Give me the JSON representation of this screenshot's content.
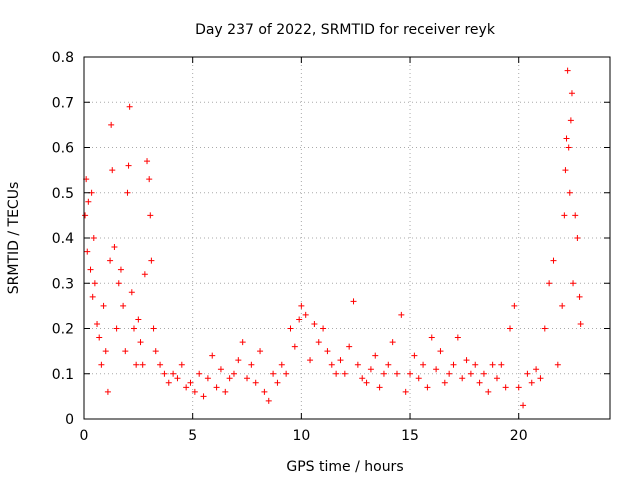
{
  "chart_data": {
    "type": "scatter",
    "title": "Day 237 of 2022, SRMTID for receiver reyk",
    "xlabel": "GPS time / hours",
    "ylabel": "SRMTID / TECUs",
    "xlim": [
      0,
      24.2
    ],
    "ylim": [
      0,
      0.8
    ],
    "x_ticks": [
      0,
      5,
      10,
      15,
      20
    ],
    "x_tick_labels": [
      "0",
      "5",
      "10",
      "15",
      "20"
    ],
    "y_ticks": [
      0,
      0.1,
      0.2,
      0.3,
      0.4,
      0.5,
      0.6,
      0.7,
      0.8
    ],
    "y_tick_labels": [
      "0",
      "0.1",
      "0.2",
      "0.3",
      "0.4",
      "0.5",
      "0.6",
      "0.7",
      "0.8"
    ],
    "grid": true,
    "marker": "+",
    "series": [
      {
        "name": "SRMTID",
        "color": "#ff0000",
        "points": [
          [
            0.05,
            0.45
          ],
          [
            0.1,
            0.53
          ],
          [
            0.15,
            0.37
          ],
          [
            0.2,
            0.48
          ],
          [
            0.3,
            0.33
          ],
          [
            0.35,
            0.5
          ],
          [
            0.4,
            0.27
          ],
          [
            0.45,
            0.4
          ],
          [
            0.5,
            0.3
          ],
          [
            0.6,
            0.21
          ],
          [
            0.7,
            0.18
          ],
          [
            0.8,
            0.12
          ],
          [
            0.9,
            0.25
          ],
          [
            1.0,
            0.15
          ],
          [
            1.1,
            0.06
          ],
          [
            1.2,
            0.35
          ],
          [
            1.25,
            0.65
          ],
          [
            1.3,
            0.55
          ],
          [
            1.4,
            0.38
          ],
          [
            1.5,
            0.2
          ],
          [
            1.6,
            0.3
          ],
          [
            1.7,
            0.33
          ],
          [
            1.8,
            0.25
          ],
          [
            1.9,
            0.15
          ],
          [
            2.0,
            0.5
          ],
          [
            2.05,
            0.56
          ],
          [
            2.1,
            0.69
          ],
          [
            2.2,
            0.28
          ],
          [
            2.3,
            0.2
          ],
          [
            2.4,
            0.12
          ],
          [
            2.5,
            0.22
          ],
          [
            2.6,
            0.17
          ],
          [
            2.7,
            0.12
          ],
          [
            2.8,
            0.32
          ],
          [
            2.9,
            0.57
          ],
          [
            3.0,
            0.53
          ],
          [
            3.05,
            0.45
          ],
          [
            3.1,
            0.35
          ],
          [
            3.2,
            0.2
          ],
          [
            3.3,
            0.15
          ],
          [
            3.5,
            0.12
          ],
          [
            3.7,
            0.1
          ],
          [
            3.9,
            0.08
          ],
          [
            4.1,
            0.1
          ],
          [
            4.3,
            0.09
          ],
          [
            4.5,
            0.12
          ],
          [
            4.7,
            0.07
          ],
          [
            4.9,
            0.08
          ],
          [
            5.1,
            0.06
          ],
          [
            5.3,
            0.1
          ],
          [
            5.5,
            0.05
          ],
          [
            5.7,
            0.09
          ],
          [
            5.9,
            0.14
          ],
          [
            6.1,
            0.07
          ],
          [
            6.3,
            0.11
          ],
          [
            6.5,
            0.06
          ],
          [
            6.7,
            0.09
          ],
          [
            6.9,
            0.1
          ],
          [
            7.1,
            0.13
          ],
          [
            7.3,
            0.17
          ],
          [
            7.5,
            0.09
          ],
          [
            7.7,
            0.12
          ],
          [
            7.9,
            0.08
          ],
          [
            8.1,
            0.15
          ],
          [
            8.3,
            0.06
          ],
          [
            8.5,
            0.04
          ],
          [
            8.7,
            0.1
          ],
          [
            8.9,
            0.08
          ],
          [
            9.1,
            0.12
          ],
          [
            9.3,
            0.1
          ],
          [
            9.5,
            0.2
          ],
          [
            9.7,
            0.16
          ],
          [
            9.9,
            0.22
          ],
          [
            10.0,
            0.25
          ],
          [
            10.2,
            0.23
          ],
          [
            10.4,
            0.13
          ],
          [
            10.6,
            0.21
          ],
          [
            10.8,
            0.17
          ],
          [
            11.0,
            0.2
          ],
          [
            11.2,
            0.15
          ],
          [
            11.4,
            0.12
          ],
          [
            11.6,
            0.1
          ],
          [
            11.8,
            0.13
          ],
          [
            12.0,
            0.1
          ],
          [
            12.2,
            0.16
          ],
          [
            12.4,
            0.26
          ],
          [
            12.6,
            0.12
          ],
          [
            12.8,
            0.09
          ],
          [
            13.0,
            0.08
          ],
          [
            13.2,
            0.11
          ],
          [
            13.4,
            0.14
          ],
          [
            13.6,
            0.07
          ],
          [
            13.8,
            0.1
          ],
          [
            14.0,
            0.12
          ],
          [
            14.2,
            0.17
          ],
          [
            14.4,
            0.1
          ],
          [
            14.6,
            0.23
          ],
          [
            14.8,
            0.06
          ],
          [
            15.0,
            0.1
          ],
          [
            15.2,
            0.14
          ],
          [
            15.4,
            0.09
          ],
          [
            15.6,
            0.12
          ],
          [
            15.8,
            0.07
          ],
          [
            16.0,
            0.18
          ],
          [
            16.2,
            0.11
          ],
          [
            16.4,
            0.15
          ],
          [
            16.6,
            0.08
          ],
          [
            16.8,
            0.1
          ],
          [
            17.0,
            0.12
          ],
          [
            17.2,
            0.18
          ],
          [
            17.4,
            0.09
          ],
          [
            17.6,
            0.13
          ],
          [
            17.8,
            0.1
          ],
          [
            18.0,
            0.12
          ],
          [
            18.2,
            0.08
          ],
          [
            18.4,
            0.1
          ],
          [
            18.6,
            0.06
          ],
          [
            18.8,
            0.12
          ],
          [
            19.0,
            0.09
          ],
          [
            19.2,
            0.12
          ],
          [
            19.4,
            0.07
          ],
          [
            19.6,
            0.2
          ],
          [
            19.8,
            0.25
          ],
          [
            20.0,
            0.07
          ],
          [
            20.2,
            0.03
          ],
          [
            20.4,
            0.1
          ],
          [
            20.6,
            0.08
          ],
          [
            20.8,
            0.11
          ],
          [
            21.0,
            0.09
          ],
          [
            21.2,
            0.2
          ],
          [
            21.4,
            0.3
          ],
          [
            21.6,
            0.35
          ],
          [
            21.8,
            0.12
          ],
          [
            22.0,
            0.25
          ],
          [
            22.1,
            0.45
          ],
          [
            22.15,
            0.55
          ],
          [
            22.2,
            0.62
          ],
          [
            22.25,
            0.77
          ],
          [
            22.3,
            0.6
          ],
          [
            22.35,
            0.5
          ],
          [
            22.4,
            0.66
          ],
          [
            22.45,
            0.72
          ],
          [
            22.5,
            0.3
          ],
          [
            22.6,
            0.45
          ],
          [
            22.7,
            0.4
          ],
          [
            22.8,
            0.27
          ],
          [
            22.85,
            0.21
          ]
        ]
      }
    ]
  }
}
